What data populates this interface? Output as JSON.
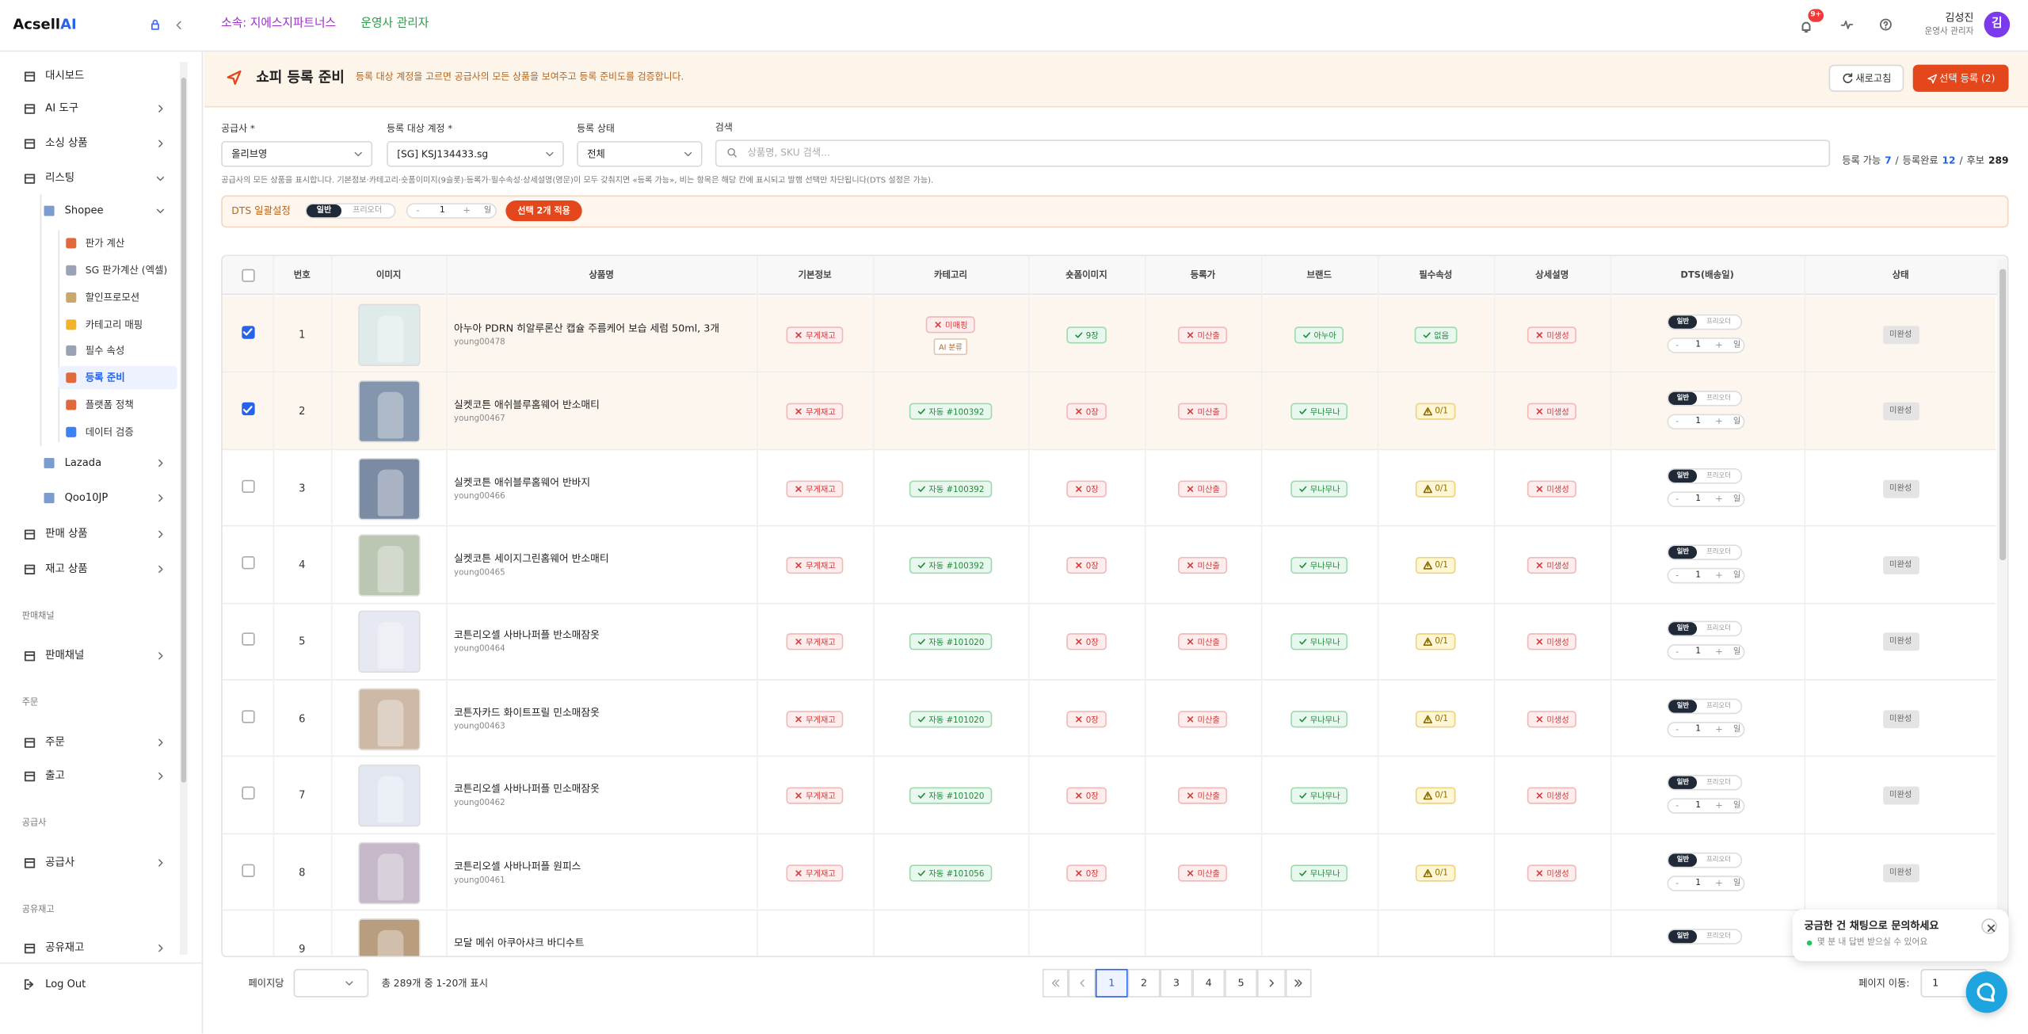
{
  "header": {
    "brand": "Acsell",
    "brand_accent": "AI",
    "org": "소속: 지에스지파트너스",
    "role": "운영사 관리자",
    "notifications": "9+",
    "user_name": "김성진",
    "user_role": "운영사 관리자",
    "avatar": "김"
  },
  "sidebar": {
    "nav": [
      {
        "label": "대시보드",
        "kind": "item"
      },
      {
        "label": "AI 도구",
        "kind": "item",
        "chevron": "right"
      },
      {
        "label": "소싱 상품",
        "kind": "item",
        "chevron": "right"
      },
      {
        "label": "리스팅",
        "kind": "item",
        "chevron": "down"
      },
      {
        "label": "Shopee",
        "kind": "sub",
        "chevron": "down"
      },
      {
        "label": "판가 계산",
        "kind": "leaf"
      },
      {
        "label": "SG 판가계산 (엑셀)",
        "kind": "leaf"
      },
      {
        "label": "할인프로모션",
        "kind": "leaf"
      },
      {
        "label": "카테고리 매핑",
        "kind": "leaf"
      },
      {
        "label": "필수 속성",
        "kind": "leaf"
      },
      {
        "label": "등록 준비",
        "kind": "leaf",
        "active": true
      },
      {
        "label": "플랫폼 정책",
        "kind": "leaf"
      },
      {
        "label": "데이터 검증",
        "kind": "leaf"
      },
      {
        "label": "Lazada",
        "kind": "sub",
        "chevron": "right"
      },
      {
        "label": "Qoo10JP",
        "kind": "sub",
        "chevron": "right"
      },
      {
        "label": "판매 상품",
        "kind": "item",
        "chevron": "right"
      },
      {
        "label": "재고 상품",
        "kind": "item",
        "chevron": "right"
      },
      {
        "label": "판매채널",
        "kind": "section"
      },
      {
        "label": "판매채널",
        "kind": "item",
        "chevron": "right"
      },
      {
        "label": "주문",
        "kind": "section"
      },
      {
        "label": "주문",
        "kind": "item",
        "chevron": "right"
      },
      {
        "label": "출고",
        "kind": "item",
        "chevron": "right"
      },
      {
        "label": "공급사",
        "kind": "section"
      },
      {
        "label": "공급사",
        "kind": "item",
        "chevron": "right"
      },
      {
        "label": "공유재고",
        "kind": "section"
      },
      {
        "label": "공유재고",
        "kind": "item",
        "chevron": "right"
      }
    ],
    "logout": "Log Out"
  },
  "page": {
    "title": "쇼피 등록 준비",
    "description": "등록 대상 계정을 고르면 공급사의 모든 상품을 보여주고 등록 준비도를 검증합니다.",
    "refresh": "새로고침",
    "submit": "선택 등록 (2)"
  },
  "filters": {
    "fields": [
      {
        "label": "공급사 *",
        "value": "올리브영"
      },
      {
        "label": "등록 대상 계정 *",
        "value": "[SG] KSJ134433.sg"
      },
      {
        "label": "등록 상태",
        "value": "전체"
      }
    ],
    "search": {
      "label": "검색",
      "placeholder": "상품명, SKU 검색..."
    },
    "stats": [
      {
        "label": "등록 가능",
        "value": 7
      },
      {
        "label": "등록완료",
        "value": 12
      },
      {
        "label": "후보",
        "value": 289
      }
    ],
    "separator": "/",
    "note": "공급사의 모든 상품을 표시합니다. 기본정보·카테고리·숏폼이미지(9슬롯)·등록가·필수속성·상세설명(영문)이 모두 갖춰지면 «등록 가능», 비는 항목은 해당 칸에 표시되고 발행 선택만 차단됩니다(DTS 설정은 가능)."
  },
  "dts_bulk": {
    "label": "DTS 일괄설정",
    "modes": [
      "일반",
      "프리오더"
    ],
    "minus": "-",
    "days": 1,
    "plus": "+",
    "unit": "일",
    "apply": "선택 2개 적용"
  },
  "table": {
    "columns": [
      "번호",
      "이미지",
      "상품명",
      "기본정보",
      "카테고리",
      "숏폼이미지",
      "등록가",
      "브랜드",
      "필수속성",
      "상세설명",
      "DTS(배송일)",
      "상태"
    ],
    "rows": [
      {
        "no": 1,
        "checked": true,
        "name": "아누아 PDRN 히알루론산 캡슐 주름케어 보습 세럼 50ml, 3개",
        "sku": "young00478",
        "basic": {
          "text": "무게재고",
          "state": "bad"
        },
        "category": {
          "text": "미매핑",
          "state": "bad",
          "tag": "AI 분류"
        },
        "images": {
          "text": "9장",
          "state": "ok"
        },
        "price": {
          "text": "미산출",
          "state": "bad"
        },
        "brand": {
          "text": "아누아",
          "state": "ok"
        },
        "attrs": {
          "text": "없음",
          "state": "ok"
        },
        "detail": {
          "text": "미생성",
          "state": "bad"
        },
        "dts_days": 1,
        "status": "미완성"
      },
      {
        "no": 2,
        "checked": true,
        "name": "실켓코튼 애쉬블루홈웨어 반소매티",
        "sku": "young00467",
        "basic": {
          "text": "무게재고",
          "state": "bad"
        },
        "category": {
          "text": "자동 #100392",
          "state": "ok"
        },
        "images": {
          "text": "0장",
          "state": "bad"
        },
        "price": {
          "text": "미산출",
          "state": "bad"
        },
        "brand": {
          "text": "무나무나",
          "state": "ok"
        },
        "attrs": {
          "text": "0/1",
          "state": "warn"
        },
        "detail": {
          "text": "미생성",
          "state": "bad"
        },
        "dts_days": 1,
        "status": "미완성"
      },
      {
        "no": 3,
        "checked": false,
        "name": "실켓코튼 애쉬블루홈웨어 반바지",
        "sku": "young00466",
        "basic": {
          "text": "무게재고",
          "state": "bad"
        },
        "category": {
          "text": "자동 #100392",
          "state": "ok"
        },
        "images": {
          "text": "0장",
          "state": "bad"
        },
        "price": {
          "text": "미산출",
          "state": "bad"
        },
        "brand": {
          "text": "무나무나",
          "state": "ok"
        },
        "attrs": {
          "text": "0/1",
          "state": "warn"
        },
        "detail": {
          "text": "미생성",
          "state": "bad"
        },
        "dts_days": 1,
        "status": "미완성"
      },
      {
        "no": 4,
        "checked": false,
        "name": "실켓코튼 세이지그린홈웨어 반소매티",
        "sku": "young00465",
        "basic": {
          "text": "무게재고",
          "state": "bad"
        },
        "category": {
          "text": "자동 #100392",
          "state": "ok"
        },
        "images": {
          "text": "0장",
          "state": "bad"
        },
        "price": {
          "text": "미산출",
          "state": "bad"
        },
        "brand": {
          "text": "무나무나",
          "state": "ok"
        },
        "attrs": {
          "text": "0/1",
          "state": "warn"
        },
        "detail": {
          "text": "미생성",
          "state": "bad"
        },
        "dts_days": 1,
        "status": "미완성"
      },
      {
        "no": 5,
        "checked": false,
        "name": "코튼리오셀 사바나퍼플 반소매잠옷",
        "sku": "young00464",
        "basic": {
          "text": "무게재고",
          "state": "bad"
        },
        "category": {
          "text": "자동 #101020",
          "state": "ok"
        },
        "images": {
          "text": "0장",
          "state": "bad"
        },
        "price": {
          "text": "미산출",
          "state": "bad"
        },
        "brand": {
          "text": "무나무나",
          "state": "ok"
        },
        "attrs": {
          "text": "0/1",
          "state": "warn"
        },
        "detail": {
          "text": "미생성",
          "state": "bad"
        },
        "dts_days": 1,
        "status": "미완성"
      },
      {
        "no": 6,
        "checked": false,
        "name": "코튼자카드 화이트프릴 민소매잠옷",
        "sku": "young00463",
        "basic": {
          "text": "무게재고",
          "state": "bad"
        },
        "category": {
          "text": "자동 #101020",
          "state": "ok"
        },
        "images": {
          "text": "0장",
          "state": "bad"
        },
        "price": {
          "text": "미산출",
          "state": "bad"
        },
        "brand": {
          "text": "무나무나",
          "state": "ok"
        },
        "attrs": {
          "text": "0/1",
          "state": "warn"
        },
        "detail": {
          "text": "미생성",
          "state": "bad"
        },
        "dts_days": 1,
        "status": "미완성"
      },
      {
        "no": 7,
        "checked": false,
        "name": "코튼리오셀 사바나퍼플 민소매잠옷",
        "sku": "young00462",
        "basic": {
          "text": "무게재고",
          "state": "bad"
        },
        "category": {
          "text": "자동 #101020",
          "state": "ok"
        },
        "images": {
          "text": "0장",
          "state": "bad"
        },
        "price": {
          "text": "미산출",
          "state": "bad"
        },
        "brand": {
          "text": "무나무나",
          "state": "ok"
        },
        "attrs": {
          "text": "0/1",
          "state": "warn"
        },
        "detail": {
          "text": "미생성",
          "state": "bad"
        },
        "dts_days": 1,
        "status": "미완성"
      },
      {
        "no": 8,
        "checked": false,
        "name": "코튼리오셀 사바나퍼플 원피스",
        "sku": "young00461",
        "basic": {
          "text": "무게재고",
          "state": "bad"
        },
        "category": {
          "text": "자동 #101056",
          "state": "ok"
        },
        "images": {
          "text": "0장",
          "state": "bad"
        },
        "price": {
          "text": "미산출",
          "state": "bad"
        },
        "brand": {
          "text": "무나무나",
          "state": "ok"
        },
        "attrs": {
          "text": "0/1",
          "state": "warn"
        },
        "detail": {
          "text": "미생성",
          "state": "bad"
        },
        "dts_days": 1,
        "status": "미완성"
      },
      {
        "no": 9,
        "name": "모달 메쉬 아쿠아샤크 바디수트"
      }
    ]
  },
  "pagination": {
    "per_page_label": "페이지당",
    "summary": "총 289개 중 1-20개 표시",
    "pages": [
      1,
      2,
      3,
      4,
      5
    ],
    "current": 1,
    "goto_label": "페이지 이동:",
    "goto_value": 1
  },
  "chat": {
    "title": "궁금한 건 채팅으로 문의하세요",
    "subtitle": "몇 분 내 답변 받으실 수 있어요"
  }
}
